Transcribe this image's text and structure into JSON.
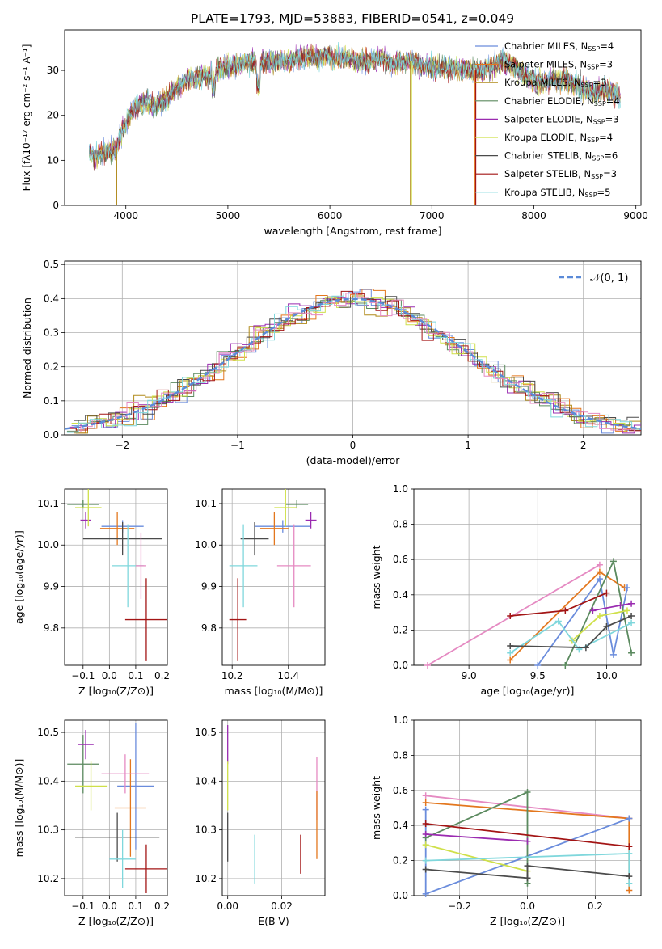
{
  "figure": {
    "title": "PLATE=1793, MJD=53883, FIBERID=0541, z=0.049"
  },
  "colors": {
    "Chabrier MILES": "#6a8cdc",
    "Salpeter MILES": "#e3771e",
    "Kroupa MILES": "#b08a1a",
    "Chabrier ELODIE": "#5b8a5f",
    "Salpeter ELODIE": "#9a2bb0",
    "Kroupa ELODIE": "#cfe04a",
    "Chabrier STELIB": "#4b4b4b",
    "Salpeter STELIB": "#a31515",
    "Kroupa STELIB": "#7fd7dc",
    "pink": "#e58ac2",
    "normal": "#5a8ad8"
  },
  "chart_data": [
    {
      "id": "spectrum",
      "type": "line",
      "xlabel": "wavelength [Angstrom, rest frame]",
      "ylabel": "Flux [fλ10⁻¹⁷ erg cm⁻² s⁻¹ A⁻¹]",
      "xlim": [
        3400,
        9050
      ],
      "ylim": [
        0,
        39
      ],
      "xticks": [
        "4000",
        "5000",
        "6000",
        "7000",
        "8000",
        "9000"
      ],
      "yticks": [
        "0",
        "10",
        "20",
        "30"
      ],
      "legend": [
        {
          "name": "Chabrier MILES",
          "nssp": "4"
        },
        {
          "name": "Salpeter MILES",
          "nssp": "3"
        },
        {
          "name": "Kroupa MILES",
          "nssp": "3"
        },
        {
          "name": "Chabrier ELODIE",
          "nssp": "4"
        },
        {
          "name": "Salpeter ELODIE",
          "nssp": "3"
        },
        {
          "name": "Kroupa ELODIE",
          "nssp": "4"
        },
        {
          "name": "Chabrier STELIB",
          "nssp": "6"
        },
        {
          "name": "Salpeter STELIB",
          "nssp": "3"
        },
        {
          "name": "Kroupa STELIB",
          "nssp": "5"
        }
      ],
      "continuum": [
        [
          3640,
          12
        ],
        [
          3700,
          11
        ],
        [
          3800,
          12
        ],
        [
          3900,
          12
        ],
        [
          3950,
          16
        ],
        [
          4000,
          18
        ],
        [
          4100,
          22
        ],
        [
          4200,
          23
        ],
        [
          4300,
          22
        ],
        [
          4400,
          24
        ],
        [
          4500,
          26
        ],
        [
          4600,
          28
        ],
        [
          4700,
          28.5
        ],
        [
          4800,
          29
        ],
        [
          4900,
          30
        ],
        [
          5000,
          31
        ],
        [
          5100,
          31
        ],
        [
          5200,
          32
        ],
        [
          5300,
          31.5
        ],
        [
          5400,
          32
        ],
        [
          5500,
          32
        ],
        [
          5600,
          32
        ],
        [
          5700,
          33
        ],
        [
          5800,
          33
        ],
        [
          5900,
          33
        ],
        [
          6000,
          33
        ],
        [
          6100,
          32.5
        ],
        [
          6200,
          32.5
        ],
        [
          6300,
          32
        ],
        [
          6400,
          32
        ],
        [
          6500,
          33
        ],
        [
          6600,
          31.5
        ],
        [
          6700,
          32
        ],
        [
          6800,
          32
        ],
        [
          6900,
          31
        ],
        [
          7000,
          31
        ],
        [
          7100,
          30.5
        ],
        [
          7200,
          30.5
        ],
        [
          7300,
          30
        ],
        [
          7400,
          30
        ],
        [
          7500,
          30
        ],
        [
          7600,
          31
        ],
        [
          7700,
          32
        ],
        [
          7800,
          31
        ],
        [
          7900,
          29
        ],
        [
          8000,
          28
        ],
        [
          8100,
          27
        ],
        [
          8200,
          28
        ],
        [
          8300,
          28
        ],
        [
          8400,
          27
        ],
        [
          8500,
          26
        ],
        [
          8600,
          25
        ],
        [
          8700,
          26
        ],
        [
          8800,
          24.5
        ],
        [
          8850,
          24
        ]
      ],
      "dips": [
        [
          3910,
          "Kroupa MILES"
        ],
        [
          6790,
          "Kroupa MILES"
        ],
        [
          6800,
          "Kroupa ELODIE"
        ],
        [
          7420,
          "Salpeter MILES"
        ],
        [
          7430,
          "Salpeter STELIB"
        ]
      ]
    },
    {
      "id": "residuals",
      "type": "histogram",
      "xlabel": "(data-model)/error",
      "ylabel": "Normed distribution",
      "xlim": [
        -2.5,
        2.5
      ],
      "ylim": [
        0,
        0.51
      ],
      "xticks": [
        "−2",
        "−1",
        "0",
        "1",
        "2"
      ],
      "yticks": [
        "0.0",
        "0.1",
        "0.2",
        "0.3",
        "0.4",
        "0.5"
      ],
      "legend_label": "𝒩(0, 1)",
      "bin_width": 0.1
    },
    {
      "id": "age-vs-Z",
      "type": "errorbar",
      "xlabel": "Z [log₁₀(Z/Z⊙)]",
      "ylabel": "age  [log₁₀(age/yr)]",
      "xlim": [
        -0.17,
        0.22
      ],
      "ylim": [
        9.71,
        10.135
      ],
      "xticks": [
        [
          -0.1,
          "−0.1"
        ],
        [
          0.0,
          "0.0"
        ],
        [
          0.1,
          "0.1"
        ],
        [
          0.2,
          "0.2"
        ]
      ],
      "yticks": [
        [
          9.8,
          "9.8"
        ],
        [
          9.9,
          "9.9"
        ],
        [
          10.0,
          "10.0"
        ],
        [
          10.1,
          "10.1"
        ]
      ],
      "points": [
        {
          "c": "Chabrier MILES",
          "x": 0.05,
          "xe": 0.08,
          "y": 10.045,
          "ye": 0.015
        },
        {
          "c": "Salpeter MILES",
          "x": 0.03,
          "xe": 0.065,
          "y": 10.04,
          "ye": 0.04
        },
        {
          "c": "Chabrier ELODIE",
          "x": -0.1,
          "xe": 0.06,
          "y": 10.098,
          "ye": 0.01
        },
        {
          "c": "Salpeter ELODIE",
          "x": -0.09,
          "xe": 0.02,
          "y": 10.06,
          "ye": 0.02
        },
        {
          "c": "Kroupa ELODIE",
          "x": -0.08,
          "xe": 0.05,
          "y": 10.09,
          "ye": 0.045
        },
        {
          "c": "Chabrier STELIB",
          "x": 0.05,
          "xe": 0.15,
          "y": 10.015,
          "ye": 0.04
        },
        {
          "c": "Salpeter STELIB",
          "x": 0.14,
          "xe": 0.08,
          "y": 9.82,
          "ye": 0.1
        },
        {
          "c": "Kroupa STELIB",
          "x": 0.07,
          "xe": 0.06,
          "y": 9.95,
          "ye": 0.1
        },
        {
          "c": "pink",
          "x": 0.12,
          "xe": 0.02,
          "y": 9.95,
          "ye": 0.08
        }
      ]
    },
    {
      "id": "age-vs-mass",
      "type": "errorbar",
      "xlabel": "mass [log₁₀(M/M⊙)]",
      "ylabel": "",
      "xlim": [
        10.165,
        10.53
      ],
      "ylim": [
        9.71,
        10.135
      ],
      "xticks": [
        [
          10.2,
          "10.2"
        ],
        [
          10.4,
          "10.4"
        ]
      ],
      "yticks": [
        [
          9.8,
          "9.8"
        ],
        [
          9.9,
          "9.9"
        ],
        [
          10.0,
          "10.0"
        ],
        [
          10.1,
          "10.1"
        ]
      ],
      "points": [
        {
          "c": "Chabrier MILES",
          "x": 10.38,
          "xe": 0.1,
          "y": 10.045,
          "ye": 0.015
        },
        {
          "c": "Salpeter MILES",
          "x": 10.35,
          "xe": 0.05,
          "y": 10.04,
          "ye": 0.04
        },
        {
          "c": "Chabrier ELODIE",
          "x": 10.43,
          "xe": 0.04,
          "y": 10.098,
          "ye": 0.01
        },
        {
          "c": "Salpeter ELODIE",
          "x": 10.48,
          "xe": 0.02,
          "y": 10.06,
          "ye": 0.02
        },
        {
          "c": "Kroupa ELODIE",
          "x": 10.39,
          "xe": 0.04,
          "y": 10.09,
          "ye": 0.045
        },
        {
          "c": "Chabrier STELIB",
          "x": 10.28,
          "xe": 0.05,
          "y": 10.015,
          "ye": 0.04
        },
        {
          "c": "Salpeter STELIB",
          "x": 10.22,
          "xe": 0.03,
          "y": 9.82,
          "ye": 0.1
        },
        {
          "c": "Kroupa STELIB",
          "x": 10.24,
          "xe": 0.05,
          "y": 9.95,
          "ye": 0.1
        },
        {
          "c": "pink",
          "x": 10.42,
          "xe": 0.06,
          "y": 9.95,
          "ye": 0.1
        }
      ]
    },
    {
      "id": "mass-weight-vs-age",
      "type": "line",
      "xlabel": "age  [log₁₀(age/yr)]",
      "ylabel": "mass weight",
      "xlim": [
        8.6,
        10.25
      ],
      "ylim": [
        0,
        1.0
      ],
      "xticks": [
        [
          9.0,
          "9.0"
        ],
        [
          9.5,
          "9.5"
        ],
        [
          10.0,
          "10.0"
        ]
      ],
      "yticks": [
        [
          0,
          "0.0"
        ],
        [
          0.2,
          "0.2"
        ],
        [
          0.4,
          "0.4"
        ],
        [
          0.6,
          "0.6"
        ],
        [
          0.8,
          "0.8"
        ],
        [
          1.0,
          "1.0"
        ]
      ],
      "series": [
        {
          "c": "pink",
          "pts": [
            [
              8.7,
              0
            ],
            [
              9.95,
              0.57
            ]
          ]
        },
        {
          "c": "Salpeter MILES",
          "pts": [
            [
              9.3,
              0.03
            ],
            [
              9.95,
              0.53
            ],
            [
              10.13,
              0.44
            ]
          ]
        },
        {
          "c": "Chabrier MILES",
          "pts": [
            [
              9.5,
              0
            ],
            [
              9.95,
              0.49
            ],
            [
              10.05,
              0.06
            ],
            [
              10.15,
              0.44
            ]
          ]
        },
        {
          "c": "Chabrier ELODIE",
          "pts": [
            [
              9.7,
              0
            ],
            [
              10.05,
              0.59
            ],
            [
              10.18,
              0.07
            ]
          ]
        },
        {
          "c": "Salpeter ELODIE",
          "pts": [
            [
              9.9,
              0.31
            ],
            [
              10.1,
              0.34
            ],
            [
              10.18,
              0.35
            ]
          ]
        },
        {
          "c": "Kroupa ELODIE",
          "pts": [
            [
              9.75,
              0.14
            ],
            [
              9.95,
              0.28
            ],
            [
              10.15,
              0.31
            ]
          ]
        },
        {
          "c": "Kroupa STELIB",
          "pts": [
            [
              9.3,
              0.07
            ],
            [
              9.65,
              0.25
            ],
            [
              9.8,
              0.09
            ],
            [
              10.18,
              0.24
            ]
          ]
        },
        {
          "c": "Chabrier STELIB",
          "pts": [
            [
              9.3,
              0.11
            ],
            [
              9.85,
              0.1
            ],
            [
              10.0,
              0.22
            ],
            [
              10.18,
              0.28
            ]
          ]
        },
        {
          "c": "Salpeter STELIB",
          "pts": [
            [
              9.3,
              0.28
            ],
            [
              9.7,
              0.31
            ],
            [
              10.0,
              0.41
            ]
          ]
        }
      ]
    },
    {
      "id": "mass-vs-Z",
      "type": "errorbar",
      "xlabel": "Z [log₁₀(Z/Z⊙)]",
      "ylabel": "mass [log₁₀(M/M⊙)]",
      "xlim": [
        -0.17,
        0.22
      ],
      "ylim": [
        10.165,
        10.525
      ],
      "xticks": [
        [
          -0.1,
          "−0.1"
        ],
        [
          0.0,
          "0.0"
        ],
        [
          0.1,
          "0.1"
        ],
        [
          0.2,
          "0.2"
        ]
      ],
      "yticks": [
        [
          10.2,
          "10.2"
        ],
        [
          10.3,
          "10.3"
        ],
        [
          10.4,
          "10.4"
        ],
        [
          10.5,
          "10.5"
        ]
      ],
      "points": [
        {
          "c": "Chabrier MILES",
          "x": 0.1,
          "xe": 0.07,
          "y": 10.39,
          "ye": 0.13
        },
        {
          "c": "Salpeter MILES",
          "x": 0.08,
          "xe": 0.06,
          "y": 10.345,
          "ye": 0.1
        },
        {
          "c": "Chabrier ELODIE",
          "x": -0.1,
          "xe": 0.06,
          "y": 10.435,
          "ye": 0.06
        },
        {
          "c": "Salpeter ELODIE",
          "x": -0.09,
          "xe": 0.03,
          "y": 10.475,
          "ye": 0.03
        },
        {
          "c": "Kroupa ELODIE",
          "x": -0.07,
          "xe": 0.06,
          "y": 10.39,
          "ye": 0.05
        },
        {
          "c": "Chabrier STELIB",
          "x": 0.03,
          "xe": 0.16,
          "y": 10.285,
          "ye": 0.05
        },
        {
          "c": "Salpeter STELIB",
          "x": 0.14,
          "xe": 0.08,
          "y": 10.22,
          "ye": 0.05
        },
        {
          "c": "Kroupa STELIB",
          "x": 0.05,
          "xe": 0.05,
          "y": 10.24,
          "ye": 0.06
        },
        {
          "c": "pink",
          "x": 0.06,
          "xe": 0.09,
          "y": 10.415,
          "ye": 0.04
        }
      ]
    },
    {
      "id": "mass-vs-ebv",
      "type": "errorbar",
      "xlabel": "E(B-V)",
      "ylabel": "",
      "xlim": [
        -0.002,
        0.036
      ],
      "ylim": [
        10.165,
        10.525
      ],
      "xticks": [
        [
          0.0,
          "0.00"
        ],
        [
          0.02,
          "0.02"
        ]
      ],
      "yticks": [
        [
          10.2,
          "10.2"
        ],
        [
          10.3,
          "10.3"
        ],
        [
          10.4,
          "10.4"
        ],
        [
          10.5,
          "10.5"
        ]
      ],
      "points": [
        {
          "c": "Salpeter ELODIE",
          "x": 0.0,
          "xe": 0,
          "y": 10.475,
          "ye": 0.04
        },
        {
          "c": "Kroupa ELODIE",
          "x": 0.0,
          "xe": 0,
          "y": 10.39,
          "ye": 0.05
        },
        {
          "c": "Chabrier STELIB",
          "x": 0.0,
          "xe": 0,
          "y": 10.285,
          "ye": 0.05
        },
        {
          "c": "Kroupa STELIB",
          "x": 0.01,
          "xe": 0,
          "y": 10.24,
          "ye": 0.05
        },
        {
          "c": "Salpeter STELIB",
          "x": 0.027,
          "xe": 0,
          "y": 10.25,
          "ye": 0.04
        },
        {
          "c": "pink",
          "x": 0.033,
          "xe": 0,
          "y": 10.385,
          "ye": 0.065
        },
        {
          "c": "Salpeter MILES",
          "x": 0.033,
          "xe": 0,
          "y": 10.31,
          "ye": 0.07
        }
      ]
    },
    {
      "id": "mass-weight-vs-Z",
      "type": "line",
      "xlabel": "Z [log₁₀(Z/Z⊙)]",
      "ylabel": "mass weight",
      "xlim": [
        -0.335,
        0.335
      ],
      "ylim": [
        0,
        1.0
      ],
      "xticks": [
        [
          -0.2,
          "−0.2"
        ],
        [
          0.0,
          "0.0"
        ],
        [
          0.2,
          "0.2"
        ]
      ],
      "yticks": [
        [
          0,
          "0.0"
        ],
        [
          0.2,
          "0.2"
        ],
        [
          0.4,
          "0.4"
        ],
        [
          0.6,
          "0.6"
        ],
        [
          0.8,
          "0.8"
        ],
        [
          1.0,
          "1.0"
        ]
      ],
      "series": [
        {
          "c": "pink",
          "pts": [
            [
              -0.3,
              0.57
            ],
            [
              0.3,
              0.44
            ]
          ]
        },
        {
          "c": "Salpeter MILES",
          "pts": [
            [
              -0.3,
              0.53
            ],
            [
              0.3,
              0.44
            ],
            [
              0.3,
              0.03
            ]
          ]
        },
        {
          "c": "Chabrier MILES",
          "pts": [
            [
              -0.3,
              0.49
            ],
            [
              -0.3,
              0.01
            ],
            [
              0.3,
              0.44
            ]
          ]
        },
        {
          "c": "Chabrier ELODIE",
          "pts": [
            [
              -0.3,
              0.33
            ],
            [
              0.0,
              0.59
            ],
            [
              0.0,
              0.07
            ]
          ]
        },
        {
          "c": "Salpeter ELODIE",
          "pts": [
            [
              -0.3,
              0.35
            ],
            [
              0.0,
              0.31
            ]
          ]
        },
        {
          "c": "Kroupa ELODIE",
          "pts": [
            [
              -0.3,
              0.29
            ],
            [
              0.0,
              0.14
            ]
          ]
        },
        {
          "c": "Kroupa STELIB",
          "pts": [
            [
              -0.3,
              0.2
            ],
            [
              0.3,
              0.24
            ],
            [
              0.3,
              0.07
            ]
          ]
        },
        {
          "c": "Chabrier STELIB",
          "pts": [
            [
              -0.3,
              0.15
            ],
            [
              0.0,
              0.1
            ],
            [
              0.0,
              0.17
            ],
            [
              0.3,
              0.11
            ]
          ]
        },
        {
          "c": "Salpeter STELIB",
          "pts": [
            [
              -0.3,
              0.41
            ],
            [
              0.3,
              0.28
            ]
          ]
        }
      ]
    }
  ]
}
